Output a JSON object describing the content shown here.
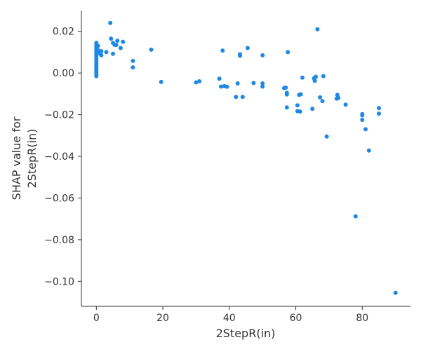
{
  "chart_data": {
    "type": "scatter",
    "xlabel": "2StepR(in)",
    "ylabel_lines": [
      "SHAP value for",
      "2StepR(in)"
    ],
    "xlim": [
      -4.5,
      94.5
    ],
    "ylim": [
      -0.112,
      0.03
    ],
    "xticks": [
      0,
      20,
      40,
      60,
      80
    ],
    "xtick_labels": [
      "0",
      "20",
      "40",
      "60",
      "80"
    ],
    "yticks": [
      0.02,
      0.0,
      -0.02,
      -0.04,
      -0.06,
      -0.08,
      -0.1
    ],
    "ytick_labels": [
      "0.02",
      "0.00",
      "−0.02",
      "−0.04",
      "−0.06",
      "−0.08",
      "−0.10"
    ],
    "grid": false,
    "point_color": "#1E88E5",
    "points": [
      {
        "x": 0,
        "y": 0.0145
      },
      {
        "x": 0,
        "y": 0.0135
      },
      {
        "x": 0,
        "y": 0.0125
      },
      {
        "x": 0,
        "y": 0.0115
      },
      {
        "x": 0,
        "y": 0.0105
      },
      {
        "x": 0,
        "y": 0.0095
      },
      {
        "x": 0,
        "y": 0.0085
      },
      {
        "x": 0,
        "y": 0.0075
      },
      {
        "x": 0,
        "y": 0.0065
      },
      {
        "x": 0,
        "y": 0.0055
      },
      {
        "x": 0,
        "y": 0.0045
      },
      {
        "x": 0,
        "y": 0.0035
      },
      {
        "x": 0,
        "y": 0.0025
      },
      {
        "x": 0,
        "y": 0.0015
      },
      {
        "x": 0,
        "y": 0.0005
      },
      {
        "x": 0,
        "y": -0.0005
      },
      {
        "x": 0,
        "y": -0.0015
      },
      {
        "x": 0.5,
        "y": 0.013
      },
      {
        "x": 0.5,
        "y": 0.011
      },
      {
        "x": 1,
        "y": 0.0095
      },
      {
        "x": 1.5,
        "y": 0.0105
      },
      {
        "x": 1.5,
        "y": 0.0085
      },
      {
        "x": 3,
        "y": 0.01
      },
      {
        "x": 4.2,
        "y": 0.024
      },
      {
        "x": 4.4,
        "y": 0.0165
      },
      {
        "x": 5,
        "y": 0.0145
      },
      {
        "x": 5.5,
        "y": 0.0135
      },
      {
        "x": 6,
        "y": 0.0135
      },
      {
        "x": 6.3,
        "y": 0.0155
      },
      {
        "x": 5,
        "y": 0.0092
      },
      {
        "x": 7.3,
        "y": 0.012
      },
      {
        "x": 8,
        "y": 0.015
      },
      {
        "x": 11,
        "y": 0.0058
      },
      {
        "x": 11,
        "y": 0.0027
      },
      {
        "x": 16.5,
        "y": 0.0112
      },
      {
        "x": 19.5,
        "y": -0.0043
      },
      {
        "x": 30,
        "y": -0.0045
      },
      {
        "x": 31,
        "y": -0.004
      },
      {
        "x": 37,
        "y": -0.0027
      },
      {
        "x": 37.5,
        "y": -0.0065
      },
      {
        "x": 38,
        "y": 0.0108
      },
      {
        "x": 38.5,
        "y": -0.0063
      },
      {
        "x": 39.3,
        "y": -0.0066
      },
      {
        "x": 42,
        "y": -0.0115
      },
      {
        "x": 42.5,
        "y": -0.005
      },
      {
        "x": 43.2,
        "y": 0.009
      },
      {
        "x": 43.2,
        "y": 0.0083
      },
      {
        "x": 44,
        "y": -0.0115
      },
      {
        "x": 45.5,
        "y": 0.012
      },
      {
        "x": 47.3,
        "y": -0.0048
      },
      {
        "x": 50,
        "y": 0.0085
      },
      {
        "x": 50,
        "y": -0.005
      },
      {
        "x": 50,
        "y": -0.0065
      },
      {
        "x": 56.5,
        "y": -0.0072
      },
      {
        "x": 57,
        "y": -0.007
      },
      {
        "x": 57.3,
        "y": -0.0095
      },
      {
        "x": 57.3,
        "y": -0.0103
      },
      {
        "x": 57.3,
        "y": -0.0165
      },
      {
        "x": 57.6,
        "y": 0.01
      },
      {
        "x": 60.5,
        "y": -0.0155
      },
      {
        "x": 60.5,
        "y": -0.0183
      },
      {
        "x": 61,
        "y": -0.0105
      },
      {
        "x": 61.3,
        "y": -0.0185
      },
      {
        "x": 61.5,
        "y": -0.0102
      },
      {
        "x": 62,
        "y": -0.0022
      },
      {
        "x": 65,
        "y": -0.0172
      },
      {
        "x": 65.5,
        "y": -0.0025
      },
      {
        "x": 65.7,
        "y": -0.0037
      },
      {
        "x": 66,
        "y": -0.0018
      },
      {
        "x": 66.5,
        "y": 0.021
      },
      {
        "x": 67.3,
        "y": -0.0117
      },
      {
        "x": 68,
        "y": -0.0135
      },
      {
        "x": 68.3,
        "y": -0.0015
      },
      {
        "x": 69.3,
        "y": -0.0305
      },
      {
        "x": 72.3,
        "y": -0.0123
      },
      {
        "x": 72.5,
        "y": -0.0105
      },
      {
        "x": 72.8,
        "y": -0.012
      },
      {
        "x": 75,
        "y": -0.0152
      },
      {
        "x": 78,
        "y": -0.0688
      },
      {
        "x": 80,
        "y": -0.0197
      },
      {
        "x": 80,
        "y": -0.0203
      },
      {
        "x": 80,
        "y": -0.0225
      },
      {
        "x": 81,
        "y": -0.027
      },
      {
        "x": 82,
        "y": -0.0372
      },
      {
        "x": 85,
        "y": -0.0168
      },
      {
        "x": 85,
        "y": -0.0195
      },
      {
        "x": 90,
        "y": -0.1055
      }
    ]
  }
}
